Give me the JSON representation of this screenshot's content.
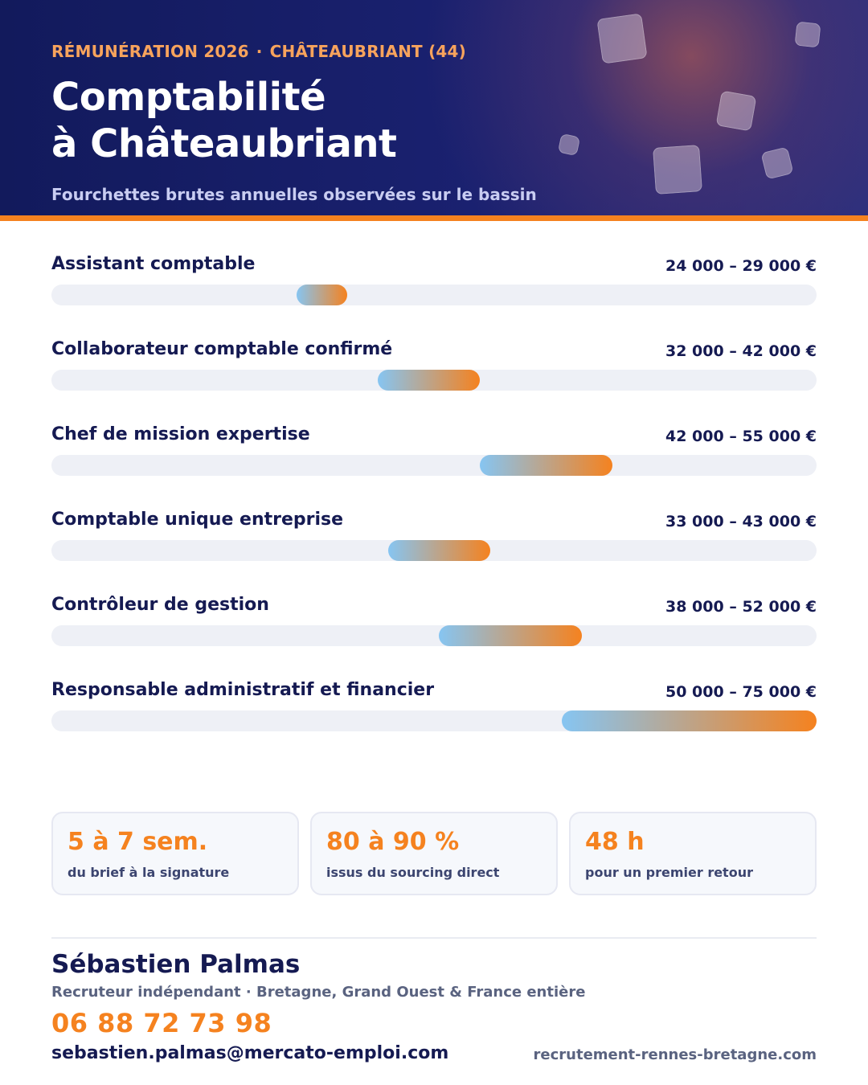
{
  "header": {
    "kicker_left": "RÉMUNÉRATION 2026",
    "kicker_separator": "·",
    "kicker_right": "CHÂTEAUBRIANT (44)",
    "title_line1": "Comptabilité",
    "title_line2": "à Châteaubriant",
    "subtitle": "Fourchettes brutes annuelles observées sur le bassin",
    "accent_color": "#f5821f",
    "background_color": "#121a5c"
  },
  "scale": {
    "min": 0,
    "max": 75000
  },
  "salary_rows": [
    {
      "label": "Assistant comptable",
      "range_text": "24 000 – 29 000 €",
      "min": 24000,
      "max": 29000
    },
    {
      "label": "Collaborateur comptable confirmé",
      "range_text": "32 000 – 42 000 €",
      "min": 32000,
      "max": 42000
    },
    {
      "label": "Chef de mission expertise",
      "range_text": "42 000 – 55 000 €",
      "min": 42000,
      "max": 55000
    },
    {
      "label": "Comptable unique entreprise",
      "range_text": "33 000 – 43 000 €",
      "min": 33000,
      "max": 43000
    },
    {
      "label": "Contrôleur de gestion",
      "range_text": "38 000 – 52 000 €",
      "min": 38000,
      "max": 52000
    },
    {
      "label": "Responsable administratif et financier",
      "range_text": "50 000 – 75 000 €",
      "min": 50000,
      "max": 75000
    }
  ],
  "stats": [
    {
      "value": "5 à 7 sem.",
      "caption": "du brief à la signature"
    },
    {
      "value": "80 à 90 %",
      "caption": "issus du sourcing direct"
    },
    {
      "value": "48 h",
      "caption": "pour un premier retour"
    }
  ],
  "contact": {
    "name": "Sébastien Palmas",
    "role": "Recruteur indépendant · Bretagne, Grand Ouest & France entière",
    "phone": "06 88 72 73 98",
    "email": "sebastien.palmas@mercato-emploi.com",
    "website": "recrutement-rennes-bretagne.com"
  }
}
